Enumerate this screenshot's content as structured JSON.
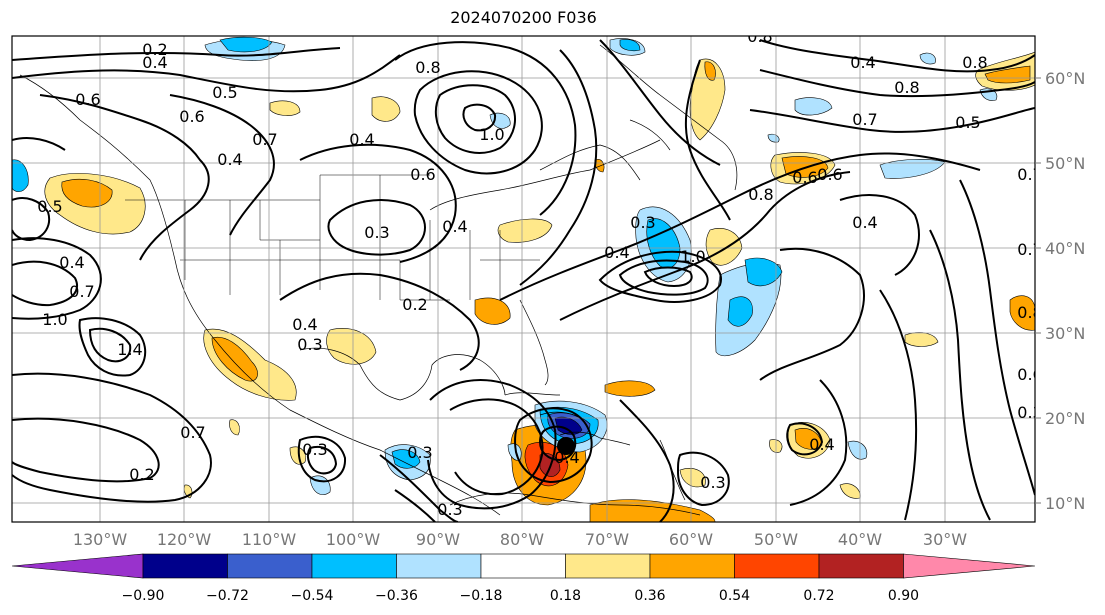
{
  "title": "2024070200 F036",
  "map": {
    "lat_labels": [
      "60°N",
      "50°N",
      "40°N",
      "30°N",
      "20°N",
      "10°N"
    ],
    "lon_labels": [
      "130°W",
      "120°W",
      "110°W",
      "100°W",
      "90°W",
      "80°W",
      "70°W",
      "60°W",
      "50°W",
      "40°W",
      "30°W"
    ],
    "contour_labels": [
      {
        "t": "0.2"
      },
      {
        "t": "0.4"
      },
      {
        "t": "0.6"
      },
      {
        "t": "0.5"
      },
      {
        "t": "0.6"
      },
      {
        "t": "0.7"
      },
      {
        "t": "0.5"
      },
      {
        "t": "0.4"
      },
      {
        "t": "0.4"
      },
      {
        "t": "0.7"
      },
      {
        "t": "1.0"
      },
      {
        "t": "1.4"
      },
      {
        "t": "0.7"
      },
      {
        "t": "0.2"
      },
      {
        "t": "0.3"
      },
      {
        "t": "0.4"
      },
      {
        "t": "0.3"
      },
      {
        "t": "0.4"
      },
      {
        "t": "0.3"
      },
      {
        "t": "0.4"
      },
      {
        "t": "0.6"
      },
      {
        "t": "0.8"
      },
      {
        "t": "1.0"
      },
      {
        "t": "0.3"
      },
      {
        "t": "0.2"
      },
      {
        "t": "0.4"
      },
      {
        "t": "0.3"
      },
      {
        "t": "0.4"
      },
      {
        "t": "1.0"
      },
      {
        "t": "0.8"
      },
      {
        "t": "0.6"
      },
      {
        "t": "0.4"
      },
      {
        "t": "0.4"
      },
      {
        "t": "0.8"
      },
      {
        "t": "0.7"
      },
      {
        "t": "0.8"
      },
      {
        "t": "0.5"
      },
      {
        "t": "0.7"
      },
      {
        "t": "0.7"
      },
      {
        "t": "0.8"
      },
      {
        "t": "0.8"
      },
      {
        "t": "0.6"
      },
      {
        "t": "0.3"
      },
      {
        "t": "0.3"
      },
      {
        "t": "0.4"
      },
      {
        "t": "0.3"
      },
      {
        "t": "0.6"
      }
    ]
  },
  "colorbar": {
    "ticks": [
      "−0.90",
      "−0.72",
      "−0.54",
      "−0.36",
      "−0.18",
      "0.18",
      "0.36",
      "0.54",
      "0.72",
      "0.90"
    ],
    "colors": [
      "#9932cc",
      "#00008b",
      "#3a5fcd",
      "#00bfff",
      "#b0e2ff",
      "#ffffff",
      "#ffe88a",
      "#ffa500",
      "#ff4500",
      "#b22222",
      "#ff88aa"
    ]
  }
}
